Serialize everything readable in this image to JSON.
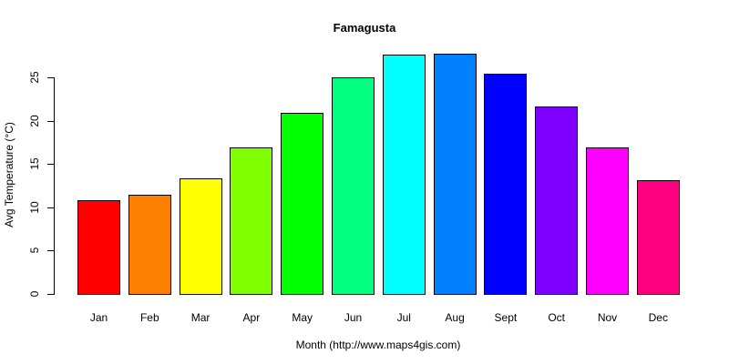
{
  "chart_data": {
    "type": "bar",
    "title": "Famagusta",
    "xlabel": "Month (http://www.maps4gis.com)",
    "ylabel": "Avg Temperature (°C)",
    "categories": [
      "Jan",
      "Feb",
      "Mar",
      "Apr",
      "May",
      "Jun",
      "Jul",
      "Aug",
      "Sept",
      "Oct",
      "Nov",
      "Dec"
    ],
    "values": [
      10.8,
      11.4,
      13.3,
      16.9,
      20.9,
      25.0,
      27.6,
      27.7,
      25.4,
      21.6,
      16.9,
      13.1
    ],
    "colors": [
      "#FF0000",
      "#FF8000",
      "#FFFF00",
      "#80FF00",
      "#00FF00",
      "#00FF80",
      "#00FFFF",
      "#0080FF",
      "#0000FF",
      "#8000FF",
      "#FF00FF",
      "#FF0080"
    ],
    "yticks": [
      0,
      5,
      10,
      15,
      20,
      25
    ],
    "ylim": [
      0,
      27.7
    ],
    "grid": false,
    "legend": null
  }
}
